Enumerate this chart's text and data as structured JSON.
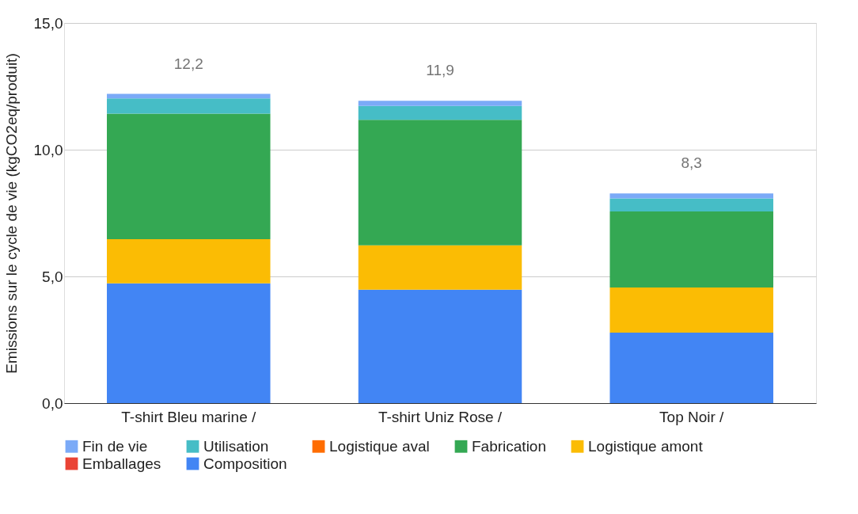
{
  "chart_data": {
    "type": "bar",
    "stacked": true,
    "ylabel": "Emissions sur le cycle de vie (kgCO2eq/produit)",
    "categories": [
      "T-shirt Bleu marine /",
      "T-shirt Uniz Rose /",
      "Top Noir /"
    ],
    "series": [
      {
        "name": "Composition",
        "color": "#4285f4",
        "values": [
          4.73,
          4.48,
          2.78
        ]
      },
      {
        "name": "Emballages",
        "color": "#ea4335",
        "values": [
          0,
          0,
          0
        ]
      },
      {
        "name": "Logistique amont",
        "color": "#fbbc04",
        "values": [
          1.74,
          1.75,
          1.78
        ]
      },
      {
        "name": "Fabrication",
        "color": "#34a853",
        "values": [
          4.95,
          4.95,
          3.0
        ]
      },
      {
        "name": "Logistique aval",
        "color": "#ff6d01",
        "values": [
          0,
          0,
          0
        ]
      },
      {
        "name": "Utilisation",
        "color": "#46bdc6",
        "values": [
          0.6,
          0.55,
          0.52
        ]
      },
      {
        "name": "Fin de vie",
        "color": "#7baaf7",
        "values": [
          0.18,
          0.2,
          0.19
        ]
      }
    ],
    "totals": [
      "12,2",
      "11,9",
      "8,3"
    ],
    "ylim": [
      0,
      15
    ],
    "yticks": [
      {
        "value": 0,
        "label": "0,0"
      },
      {
        "value": 5,
        "label": "5,0"
      },
      {
        "value": 10,
        "label": "10,0"
      },
      {
        "value": 15,
        "label": "15,0"
      }
    ],
    "grid": "y",
    "legend": "bottom"
  }
}
